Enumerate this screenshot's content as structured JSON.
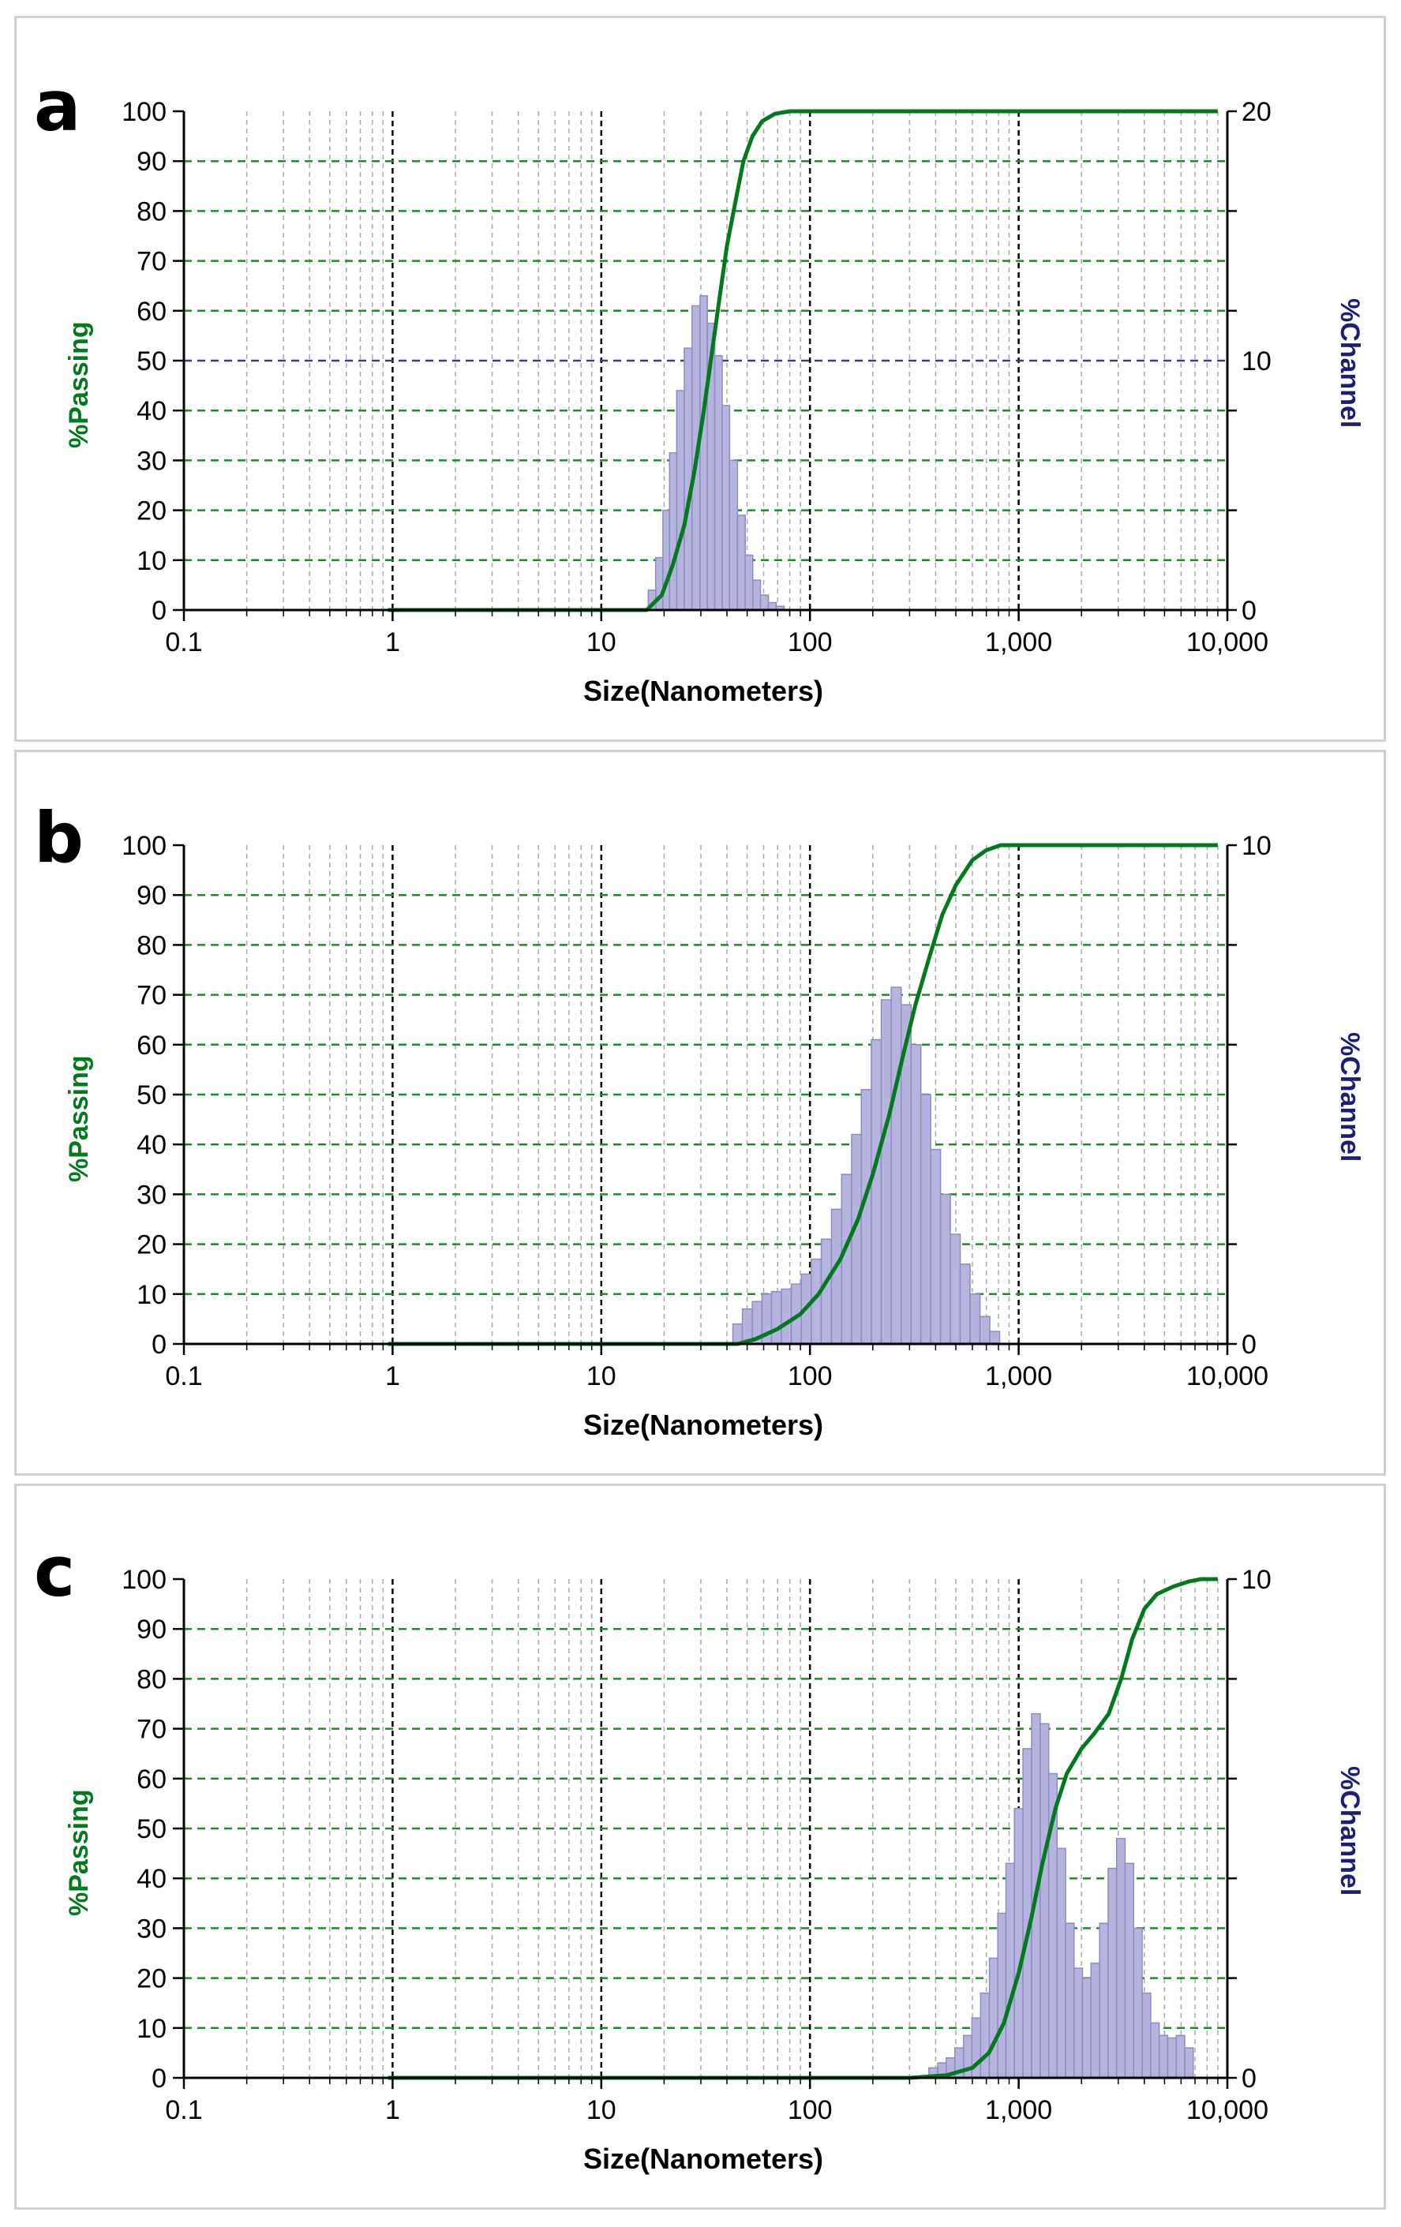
{
  "colors": {
    "passing": "#007a1a",
    "channel": "#1c1c7a",
    "bar_fill": "#b4b4de",
    "bar_edge": "#8c8cc4",
    "grid_major": "#000000",
    "grid_minor": "#a8a8a8",
    "grid_horizontal": "#1f8a2a",
    "grid_median": "#3a3a8a"
  },
  "chart_data": [
    {
      "panel_label": "a",
      "type": "bar",
      "xscale": "log",
      "xlim": [
        0.1,
        10000
      ],
      "xticks": [
        "0.1",
        "1",
        "10",
        "100",
        "1,000",
        "10,000"
      ],
      "xlabel": "Size(Nanometers)",
      "ylabel_left": "%Passing",
      "ylabel_right": "%Channel",
      "ylim_left": [
        0,
        100
      ],
      "ylim_right": [
        0,
        20
      ],
      "yticks_left": [
        "0",
        "10",
        "20",
        "30",
        "40",
        "50",
        "60",
        "70",
        "80",
        "90",
        "100"
      ],
      "yticks_right": [
        "0",
        "10",
        "20"
      ],
      "median_line": 50,
      "bars": [
        {
          "x": 17.5,
          "y": 0.8
        },
        {
          "x": 19.0,
          "y": 2.1
        },
        {
          "x": 20.5,
          "y": 4.0
        },
        {
          "x": 22.0,
          "y": 6.3
        },
        {
          "x": 24.0,
          "y": 8.8
        },
        {
          "x": 26.0,
          "y": 10.5
        },
        {
          "x": 28.5,
          "y": 12.2
        },
        {
          "x": 31.0,
          "y": 12.6
        },
        {
          "x": 33.5,
          "y": 11.5
        },
        {
          "x": 36.5,
          "y": 10.2
        },
        {
          "x": 39.5,
          "y": 8.2
        },
        {
          "x": 43.0,
          "y": 6.0
        },
        {
          "x": 47.0,
          "y": 3.8
        },
        {
          "x": 51.0,
          "y": 2.2
        },
        {
          "x": 55.5,
          "y": 1.2
        },
        {
          "x": 60.5,
          "y": 0.6
        },
        {
          "x": 66.0,
          "y": 0.3
        },
        {
          "x": 72.0,
          "y": 0.15
        }
      ],
      "cumulative": [
        {
          "x": 0.95,
          "y": 0
        },
        {
          "x": 16.5,
          "y": 0
        },
        {
          "x": 19.5,
          "y": 3
        },
        {
          "x": 22.0,
          "y": 9
        },
        {
          "x": 25.0,
          "y": 17
        },
        {
          "x": 28.0,
          "y": 28
        },
        {
          "x": 31.0,
          "y": 40
        },
        {
          "x": 34.0,
          "y": 52
        },
        {
          "x": 37.0,
          "y": 63
        },
        {
          "x": 40.0,
          "y": 73
        },
        {
          "x": 44.0,
          "y": 82
        },
        {
          "x": 48.0,
          "y": 90
        },
        {
          "x": 53.0,
          "y": 95
        },
        {
          "x": 59.0,
          "y": 98
        },
        {
          "x": 68.0,
          "y": 99.5
        },
        {
          "x": 80.0,
          "y": 100
        },
        {
          "x": 9000,
          "y": 100
        }
      ]
    },
    {
      "panel_label": "b",
      "type": "bar",
      "xscale": "log",
      "xlim": [
        0.1,
        10000
      ],
      "xticks": [
        "0.1",
        "1",
        "10",
        "100",
        "1,000",
        "10,000"
      ],
      "xlabel": "Size(Nanometers)",
      "ylabel_left": "%Passing",
      "ylabel_right": "%Channel",
      "ylim_left": [
        0,
        100
      ],
      "ylim_right": [
        0,
        10
      ],
      "yticks_left": [
        "0",
        "10",
        "20",
        "30",
        "40",
        "50",
        "60",
        "70",
        "80",
        "90",
        "100"
      ],
      "yticks_right": [
        "0",
        "10"
      ],
      "bars": [
        {
          "x": 45,
          "y": 0.4
        },
        {
          "x": 50,
          "y": 0.7
        },
        {
          "x": 56,
          "y": 0.85
        },
        {
          "x": 62,
          "y": 1.0
        },
        {
          "x": 69,
          "y": 1.05
        },
        {
          "x": 77,
          "y": 1.1
        },
        {
          "x": 86,
          "y": 1.2
        },
        {
          "x": 96,
          "y": 1.4
        },
        {
          "x": 107,
          "y": 1.7
        },
        {
          "x": 120,
          "y": 2.1
        },
        {
          "x": 134,
          "y": 2.7
        },
        {
          "x": 150,
          "y": 3.4
        },
        {
          "x": 167,
          "y": 4.2
        },
        {
          "x": 186,
          "y": 5.1
        },
        {
          "x": 208,
          "y": 6.1
        },
        {
          "x": 232,
          "y": 6.9
        },
        {
          "x": 259,
          "y": 7.15
        },
        {
          "x": 289,
          "y": 6.8
        },
        {
          "x": 322,
          "y": 6.0
        },
        {
          "x": 359,
          "y": 5.0
        },
        {
          "x": 400,
          "y": 3.9
        },
        {
          "x": 446,
          "y": 3.0
        },
        {
          "x": 497,
          "y": 2.2
        },
        {
          "x": 554,
          "y": 1.6
        },
        {
          "x": 618,
          "y": 1.0
        },
        {
          "x": 689,
          "y": 0.55
        },
        {
          "x": 768,
          "y": 0.25
        }
      ],
      "cumulative": [
        {
          "x": 0.95,
          "y": 0
        },
        {
          "x": 45,
          "y": 0
        },
        {
          "x": 55,
          "y": 1
        },
        {
          "x": 70,
          "y": 3
        },
        {
          "x": 90,
          "y": 6
        },
        {
          "x": 110,
          "y": 10
        },
        {
          "x": 140,
          "y": 17
        },
        {
          "x": 170,
          "y": 25
        },
        {
          "x": 200,
          "y": 34
        },
        {
          "x": 240,
          "y": 46
        },
        {
          "x": 280,
          "y": 58
        },
        {
          "x": 320,
          "y": 68
        },
        {
          "x": 370,
          "y": 77
        },
        {
          "x": 430,
          "y": 86
        },
        {
          "x": 500,
          "y": 92
        },
        {
          "x": 600,
          "y": 97
        },
        {
          "x": 700,
          "y": 99
        },
        {
          "x": 820,
          "y": 100
        },
        {
          "x": 9000,
          "y": 100
        }
      ]
    },
    {
      "panel_label": "c",
      "type": "bar",
      "xscale": "log",
      "xlim": [
        0.1,
        10000
      ],
      "xticks": [
        "0.1",
        "1",
        "10",
        "100",
        "1,000",
        "10,000"
      ],
      "xlabel": "Size(Nanometers)",
      "ylabel_left": "%Passing",
      "ylabel_right": "%Channel",
      "ylim_left": [
        0,
        100
      ],
      "ylim_right": [
        0,
        10
      ],
      "yticks_left": [
        "0",
        "10",
        "20",
        "30",
        "40",
        "50",
        "60",
        "70",
        "80",
        "90",
        "100"
      ],
      "yticks_right": [
        "0",
        "10"
      ],
      "bars": [
        {
          "x": 390,
          "y": 0.2
        },
        {
          "x": 430,
          "y": 0.3
        },
        {
          "x": 470,
          "y": 0.4
        },
        {
          "x": 520,
          "y": 0.6
        },
        {
          "x": 570,
          "y": 0.85
        },
        {
          "x": 625,
          "y": 1.2
        },
        {
          "x": 690,
          "y": 1.7
        },
        {
          "x": 760,
          "y": 2.4
        },
        {
          "x": 830,
          "y": 3.3
        },
        {
          "x": 910,
          "y": 4.3
        },
        {
          "x": 1000,
          "y": 5.4
        },
        {
          "x": 1100,
          "y": 6.6
        },
        {
          "x": 1210,
          "y": 7.3
        },
        {
          "x": 1330,
          "y": 7.1
        },
        {
          "x": 1460,
          "y": 6.1
        },
        {
          "x": 1600,
          "y": 4.6
        },
        {
          "x": 1760,
          "y": 3.1
        },
        {
          "x": 1930,
          "y": 2.2
        },
        {
          "x": 2120,
          "y": 2.0
        },
        {
          "x": 2330,
          "y": 2.3
        },
        {
          "x": 2560,
          "y": 3.1
        },
        {
          "x": 2810,
          "y": 4.2
        },
        {
          "x": 3090,
          "y": 4.8
        },
        {
          "x": 3390,
          "y": 4.3
        },
        {
          "x": 3730,
          "y": 3.0
        },
        {
          "x": 4090,
          "y": 1.7
        },
        {
          "x": 4500,
          "y": 1.1
        },
        {
          "x": 4940,
          "y": 0.85
        },
        {
          "x": 5430,
          "y": 0.8
        },
        {
          "x": 5960,
          "y": 0.85
        },
        {
          "x": 6550,
          "y": 0.6
        }
      ],
      "cumulative": [
        {
          "x": 0.95,
          "y": 0
        },
        {
          "x": 300,
          "y": 0
        },
        {
          "x": 450,
          "y": 0.5
        },
        {
          "x": 600,
          "y": 2
        },
        {
          "x": 720,
          "y": 5
        },
        {
          "x": 850,
          "y": 11
        },
        {
          "x": 1000,
          "y": 21
        },
        {
          "x": 1150,
          "y": 32
        },
        {
          "x": 1300,
          "y": 43
        },
        {
          "x": 1500,
          "y": 54
        },
        {
          "x": 1700,
          "y": 61
        },
        {
          "x": 2000,
          "y": 66
        },
        {
          "x": 2300,
          "y": 69
        },
        {
          "x": 2700,
          "y": 73
        },
        {
          "x": 3100,
          "y": 80
        },
        {
          "x": 3500,
          "y": 88
        },
        {
          "x": 4000,
          "y": 94
        },
        {
          "x": 4600,
          "y": 97
        },
        {
          "x": 5500,
          "y": 98.5
        },
        {
          "x": 6500,
          "y": 99.5
        },
        {
          "x": 7500,
          "y": 100
        },
        {
          "x": 9000,
          "y": 100
        }
      ]
    }
  ]
}
